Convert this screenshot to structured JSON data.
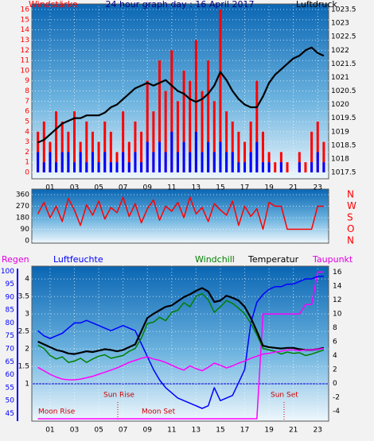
{
  "chart_data": [
    {
      "type": "bar",
      "title": "24 hour graph day : 16 April 2017",
      "ylabel": "Windstärke",
      "y2label": "Luftdruck",
      "x": [
        0,
        0.5,
        1,
        1.5,
        2,
        2.5,
        3,
        3.5,
        4,
        4.5,
        5,
        5.5,
        6,
        6.5,
        7,
        7.5,
        8,
        8.5,
        9,
        9.5,
        10,
        10.5,
        11,
        11.5,
        12,
        12.5,
        13,
        13.5,
        14,
        14.5,
        15,
        15.5,
        16,
        16.5,
        17,
        17.5,
        18,
        18.5,
        19,
        19.5,
        20,
        20.5,
        21,
        21.5,
        22,
        22.5,
        23,
        23.5
      ],
      "xlim": [
        -0.5,
        23.9
      ],
      "xticks": [
        {
          "value": 1,
          "label": "01"
        },
        {
          "value": 3,
          "label": "03"
        },
        {
          "value": 5,
          "label": "05"
        },
        {
          "value": 7,
          "label": "07"
        },
        {
          "value": 9,
          "label": "09"
        },
        {
          "value": 11,
          "label": "11"
        },
        {
          "value": 13,
          "label": "13"
        },
        {
          "value": 15,
          "label": "15"
        },
        {
          "value": 17,
          "label": "17"
        },
        {
          "value": 19,
          "label": "19"
        },
        {
          "value": 21,
          "label": "21"
        },
        {
          "value": 23,
          "label": "23"
        }
      ],
      "ylim": [
        0,
        16
      ],
      "yticks": [
        0,
        1,
        2,
        3,
        4,
        5,
        6,
        7,
        8,
        9,
        10,
        11,
        12,
        13,
        14,
        15,
        16
      ],
      "y2lim": [
        1017.5,
        1023.5
      ],
      "y2ticks": [
        1017.5,
        1018,
        1018.5,
        1019,
        1019.5,
        1020,
        1020.5,
        1021,
        1021.5,
        1022,
        1022.5,
        1023,
        1023.5
      ],
      "grid": true,
      "series": [
        {
          "type": "bar",
          "color": "#ff0000",
          "values": [
            4,
            5,
            3,
            6,
            5,
            4,
            6,
            3,
            5,
            4,
            3,
            5,
            4,
            2,
            6,
            3,
            5,
            4,
            9,
            6,
            11,
            8,
            12,
            7,
            10,
            9,
            13,
            8,
            11,
            7,
            16,
            6,
            5,
            4,
            3,
            5,
            9,
            4,
            2,
            1,
            2,
            1,
            0,
            2,
            1,
            4,
            5,
            3
          ]
        },
        {
          "type": "bar",
          "color": "#0000ff",
          "values": [
            2,
            1,
            2,
            1,
            2,
            2,
            1,
            2,
            1,
            2,
            1,
            2,
            1,
            1,
            2,
            1,
            2,
            1,
            3,
            2,
            3,
            2,
            4,
            2,
            3,
            2,
            4,
            2,
            3,
            2,
            3,
            2,
            2,
            1,
            1,
            2,
            3,
            1,
            1,
            0,
            1,
            0,
            0,
            1,
            0,
            1,
            2,
            1
          ]
        },
        {
          "type": "line",
          "axis": "y2",
          "color": "#000000",
          "values": [
            1018.6,
            1018.7,
            1018.9,
            1019.1,
            1019.3,
            1019.4,
            1019.5,
            1019.5,
            1019.6,
            1019.6,
            1019.6,
            1019.7,
            1019.9,
            1020.0,
            1020.2,
            1020.4,
            1020.6,
            1020.7,
            1020.8,
            1020.7,
            1020.8,
            1020.9,
            1020.7,
            1020.5,
            1020.4,
            1020.2,
            1020.1,
            1020.2,
            1020.4,
            1020.7,
            1021.2,
            1020.9,
            1020.5,
            1020.2,
            1020.0,
            1019.9,
            1019.9,
            1020.3,
            1020.8,
            1021.1,
            1021.3,
            1021.5,
            1021.7,
            1021.8,
            1022.0,
            1022.1,
            1021.9,
            1021.8
          ]
        }
      ]
    },
    {
      "type": "line",
      "x": [
        0,
        0.5,
        1,
        1.5,
        2,
        2.5,
        3,
        3.5,
        4,
        4.5,
        5,
        5.5,
        6,
        6.5,
        7,
        7.5,
        8,
        8.5,
        9,
        9.5,
        10,
        10.5,
        11,
        11.5,
        12,
        12.5,
        13,
        13.5,
        14,
        14.5,
        15,
        15.5,
        16,
        16.5,
        17,
        17.5,
        18,
        18.5,
        19,
        19.5,
        20,
        20.5,
        21,
        21.5,
        22,
        22.5,
        23,
        23.5
      ],
      "xlim": [
        -0.5,
        23.9
      ],
      "ylim": [
        0,
        360
      ],
      "yticks": [
        0,
        90,
        180,
        270,
        360
      ],
      "y2lim": [
        0,
        360
      ],
      "y2ticks": [
        {
          "value": 0,
          "label": "N"
        },
        {
          "value": 90,
          "label": "O"
        },
        {
          "value": 180,
          "label": "S"
        },
        {
          "value": 270,
          "label": "W"
        },
        {
          "value": 360,
          "label": "N"
        }
      ],
      "grid": true,
      "series": [
        {
          "type": "line",
          "color": "#ff0000",
          "values": [
            210,
            300,
            180,
            270,
            150,
            330,
            240,
            120,
            280,
            200,
            310,
            170,
            260,
            220,
            340,
            190,
            290,
            140,
            250,
            320,
            160,
            270,
            230,
            300,
            180,
            340,
            210,
            260,
            150,
            290,
            240,
            200,
            310,
            120,
            270,
            190,
            250,
            90,
            300,
            270,
            270,
            90,
            90,
            90,
            90,
            90,
            270,
            270
          ]
        }
      ]
    },
    {
      "type": "line",
      "x": [
        0,
        0.5,
        1,
        1.5,
        2,
        2.5,
        3,
        3.5,
        4,
        4.5,
        5,
        5.5,
        6,
        6.5,
        7,
        7.5,
        8,
        8.5,
        9,
        9.5,
        10,
        10.5,
        11,
        11.5,
        12,
        12.5,
        13,
        13.5,
        14,
        14.5,
        15,
        15.5,
        16,
        16.5,
        17,
        17.5,
        18,
        18.5,
        19,
        19.5,
        20,
        20.5,
        21,
        21.5,
        22,
        22.5,
        23,
        23.5
      ],
      "xlim": [
        -0.5,
        23.9
      ],
      "xticks": [
        {
          "value": 1,
          "label": "01"
        },
        {
          "value": 3,
          "label": "03"
        },
        {
          "value": 5,
          "label": "05"
        },
        {
          "value": 7,
          "label": "07"
        },
        {
          "value": 9,
          "label": "09"
        },
        {
          "value": 11,
          "label": "11"
        },
        {
          "value": 13,
          "label": "13"
        },
        {
          "value": 15,
          "label": "15"
        },
        {
          "value": 17,
          "label": "17"
        },
        {
          "value": 19,
          "label": "19"
        },
        {
          "value": 21,
          "label": "21"
        },
        {
          "value": 23,
          "label": "23"
        }
      ],
      "ylim": [
        0,
        4.3
      ],
      "yticks": [
        1,
        1.5,
        2,
        2.5,
        3,
        3.5,
        4
      ],
      "y3lim": [
        43,
        101
      ],
      "y3ticks": [
        45,
        50,
        55,
        60,
        65,
        70,
        75,
        80,
        85,
        90,
        95,
        100
      ],
      "y2lim": [
        -5.1,
        16.5
      ],
      "y2ticks": [
        -4,
        -2,
        0,
        2,
        4,
        6,
        8,
        10,
        12,
        14,
        16
      ],
      "grid": true,
      "annotations": [
        "Sun Rise",
        "Sun Set",
        "Moon Rise",
        "Moon Set"
      ],
      "series": [
        {
          "name": "Regen",
          "type": "line",
          "color": "#ff00ff",
          "values": [
            0,
            0,
            0,
            0,
            0,
            0,
            0,
            0,
            0,
            0,
            0,
            0,
            0,
            0,
            0,
            0,
            0,
            0,
            0,
            0,
            0,
            0,
            0,
            0,
            0,
            0,
            0,
            0,
            0,
            0,
            0,
            0,
            0,
            0,
            0,
            0,
            0,
            3.0,
            3.0,
            3.0,
            3.0,
            3.0,
            3.0,
            3.0,
            3.27,
            3.27,
            4.2,
            4.2
          ]
        },
        {
          "name": "Luftfeuchte",
          "type": "line",
          "axis": "y3",
          "color": "#0000ff",
          "values": [
            77,
            75,
            74,
            75,
            76,
            78,
            80,
            80,
            81,
            80,
            79,
            78,
            77,
            78,
            79,
            78,
            77,
            72,
            67,
            62,
            58,
            55,
            53,
            51,
            50,
            49,
            48,
            47,
            48,
            55,
            50,
            51,
            52,
            57,
            62,
            80,
            88,
            91,
            93,
            94,
            94,
            95,
            95,
            96,
            97,
            97,
            98,
            98
          ]
        },
        {
          "name": "Windchill",
          "type": "line",
          "axis": "y2",
          "color": "#008000",
          "values": [
            5.5,
            5.0,
            4.0,
            3.5,
            3.8,
            3.0,
            3.2,
            3.6,
            3.0,
            3.5,
            3.9,
            4.1,
            3.6,
            3.8,
            4.0,
            4.6,
            5.0,
            6.5,
            8.6,
            8.8,
            9.5,
            9.0,
            10.2,
            10.5,
            11.6,
            11.0,
            12.5,
            12.9,
            12.0,
            10.2,
            11.0,
            11.9,
            11.5,
            10.8,
            10.0,
            8.6,
            7.0,
            5.0,
            4.8,
            4.6,
            4.2,
            4.5,
            4.3,
            4.4,
            4.0,
            4.2,
            4.5,
            4.8
          ]
        },
        {
          "name": "Temperatur",
          "type": "line",
          "axis": "y2",
          "color": "#000000",
          "values": [
            6.0,
            5.6,
            5.2,
            4.8,
            4.6,
            4.3,
            4.2,
            4.4,
            4.6,
            4.5,
            4.7,
            4.9,
            4.8,
            4.6,
            4.8,
            5.2,
            5.6,
            7.5,
            9.4,
            10.0,
            10.5,
            11.0,
            11.2,
            11.8,
            12.4,
            12.8,
            13.3,
            13.7,
            13.2,
            11.7,
            11.9,
            12.6,
            12.3,
            11.9,
            11.0,
            9.4,
            7.5,
            5.4,
            5.2,
            5.1,
            5.0,
            5.1,
            5.1,
            4.9,
            4.8,
            4.8,
            4.9,
            5.1
          ]
        },
        {
          "name": "Taupunkt",
          "type": "line",
          "axis": "y2",
          "color": "#ff00ff",
          "values": [
            2.3,
            1.8,
            1.3,
            0.9,
            0.6,
            0.5,
            0.5,
            0.6,
            0.8,
            1.0,
            1.3,
            1.6,
            1.9,
            2.2,
            2.6,
            3.0,
            3.3,
            3.6,
            3.8,
            3.5,
            3.3,
            3.0,
            2.6,
            2.2,
            1.9,
            2.5,
            2.1,
            1.8,
            2.3,
            2.9,
            2.6,
            2.2,
            2.5,
            2.9,
            3.2,
            3.6,
            3.9,
            4.2,
            4.3,
            4.5,
            4.6,
            4.8,
            4.8,
            4.7,
            4.8,
            4.8,
            4.9,
            5.0
          ]
        }
      ]
    }
  ]
}
